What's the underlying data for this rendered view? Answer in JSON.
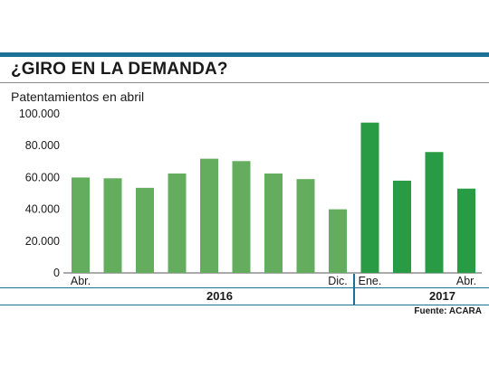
{
  "header": {
    "title": "¿GIRO EN LA DEMANDA?",
    "subtitle": "Patentamientos en abril"
  },
  "years": {
    "first": "2016",
    "second": "2017"
  },
  "source": "Fuente: ACARA",
  "colors": {
    "bar_2016": "#65ad5e",
    "bar_2017": "#2a9b45",
    "accent": "#1c6f95",
    "axis": "#555555"
  },
  "chart_data": {
    "type": "bar",
    "title": "¿GIRO EN LA DEMANDA?",
    "subtitle": "Patentamientos en abril",
    "xlabel": "",
    "ylabel": "",
    "ylim": [
      0,
      100000
    ],
    "yticks": [
      0,
      20000,
      40000,
      60000,
      80000,
      100000
    ],
    "ytick_labels": [
      "0",
      "20.000",
      "40.000",
      "60.000",
      "80.000",
      "100.000"
    ],
    "grid": false,
    "legend": "none",
    "categories": [
      "Abr.",
      "",
      "",
      "",
      "",
      "",
      "",
      "",
      "Dic.",
      "Ene.",
      "",
      "",
      "Abr."
    ],
    "years": [
      "2016",
      "2016",
      "2016",
      "2016",
      "2016",
      "2016",
      "2016",
      "2016",
      "2016",
      "2017",
      "2017",
      "2017",
      "2017"
    ],
    "values": [
      60000,
      59500,
      53500,
      62500,
      71800,
      70300,
      62500,
      59000,
      40000,
      94500,
      58000,
      76000,
      53000
    ]
  }
}
